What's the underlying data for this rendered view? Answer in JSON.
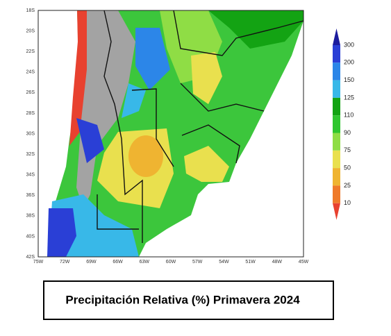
{
  "map": {
    "lat_labels": [
      "18S",
      "20S",
      "22S",
      "24S",
      "26S",
      "28S",
      "30S",
      "32S",
      "34S",
      "36S",
      "38S",
      "40S",
      "42S"
    ],
    "lon_labels": [
      "75W",
      "72W",
      "69W",
      "66W",
      "63W",
      "60W",
      "57W",
      "54W",
      "51W",
      "48W",
      "45W"
    ],
    "legend": {
      "levels": [
        "300",
        "200",
        "150",
        "125",
        "110",
        "90",
        "75",
        "50",
        "25",
        "10"
      ],
      "colors": [
        "#1c1c9e",
        "#2a3fd6",
        "#2c86e8",
        "#38b8e8",
        "#13a313",
        "#2fc62f",
        "#8fdd45",
        "#e9e04e",
        "#efb431",
        "#ef7a2a",
        "#e8412f"
      ]
    }
  },
  "title": "Precipitación Relativa (%) Primavera 2024"
}
